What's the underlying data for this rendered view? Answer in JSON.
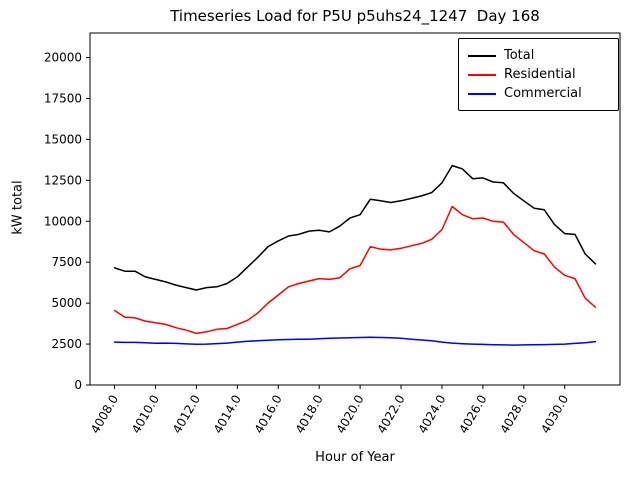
{
  "figure": {
    "title": "Timeseries Load for P5U p5uhs24_1247  Day 168"
  },
  "chart_data": {
    "type": "line",
    "title": "Timeseries Load for P5U p5uhs24_1247  Day 168",
    "xlabel": "Hour of Year",
    "ylabel": "kW total",
    "xlim": [
      4006.8,
      4032.7
    ],
    "ylim": [
      0,
      21500
    ],
    "grid": false,
    "legend_position": "upper right",
    "x_ticks": [
      4008,
      4010,
      4012,
      4014,
      4016,
      4018,
      4020,
      4022,
      4024,
      4026,
      4028,
      4030
    ],
    "x_tick_labels": [
      "4008.0",
      "4010.0",
      "4012.0",
      "4014.0",
      "4016.0",
      "4018.0",
      "4020.0",
      "4022.0",
      "4024.0",
      "4026.0",
      "4028.0",
      "4030.0"
    ],
    "y_ticks": [
      0,
      2500,
      5000,
      7500,
      10000,
      12500,
      15000,
      17500,
      20000
    ],
    "x": [
      4008.0,
      4008.5,
      4009.0,
      4009.5,
      4010.0,
      4010.5,
      4011.0,
      4011.5,
      4012.0,
      4012.5,
      4013.0,
      4013.5,
      4014.0,
      4014.5,
      4015.0,
      4015.5,
      4016.0,
      4016.5,
      4017.0,
      4017.5,
      4018.0,
      4018.5,
      4019.0,
      4019.5,
      4020.0,
      4020.5,
      4021.0,
      4021.5,
      4022.0,
      4022.5,
      4023.0,
      4023.5,
      4024.0,
      4024.5,
      4025.0,
      4025.5,
      4026.0,
      4026.5,
      4027.0,
      4027.5,
      4028.0,
      4028.5,
      4029.0,
      4029.5,
      4030.0,
      4030.5,
      4031.0,
      4031.5
    ],
    "series": [
      {
        "name": "Total",
        "color": "#000000",
        "values": [
          7150,
          6950,
          6950,
          6600,
          6450,
          6300,
          6100,
          5950,
          5800,
          5950,
          6000,
          6200,
          6600,
          7200,
          7800,
          8450,
          8800,
          9100,
          9200,
          9400,
          9450,
          9350,
          9700,
          10200,
          10400,
          11350,
          11250,
          11150,
          11250,
          11400,
          11550,
          11750,
          12350,
          13400,
          13200,
          12600,
          12650,
          12400,
          12350,
          11700,
          11250,
          10800,
          10700,
          9800,
          9250,
          9200,
          8000,
          7400
        ]
      },
      {
        "name": "Residential",
        "color": "#ff0000",
        "values": [
          4550,
          4150,
          4100,
          3900,
          3800,
          3700,
          3500,
          3350,
          3150,
          3250,
          3400,
          3450,
          3700,
          3950,
          4400,
          5000,
          5500,
          6000,
          6200,
          6350,
          6500,
          6450,
          6550,
          7100,
          7300,
          8450,
          8300,
          8250,
          8350,
          8500,
          8650,
          8900,
          9500,
          10900,
          10400,
          10150,
          10200,
          10000,
          9950,
          9200,
          8700,
          8200,
          8000,
          7200,
          6700,
          6500,
          5300,
          4750
        ]
      },
      {
        "name": "Commercial",
        "color": "#0000ff",
        "values": [
          2620,
          2600,
          2600,
          2580,
          2550,
          2560,
          2540,
          2510,
          2490,
          2500,
          2530,
          2560,
          2620,
          2670,
          2700,
          2730,
          2760,
          2780,
          2790,
          2800,
          2830,
          2850,
          2870,
          2890,
          2900,
          2920,
          2900,
          2880,
          2850,
          2800,
          2750,
          2700,
          2620,
          2560,
          2520,
          2500,
          2480,
          2460,
          2450,
          2440,
          2450,
          2460,
          2470,
          2480,
          2500,
          2540,
          2580,
          2650
        ]
      }
    ]
  }
}
